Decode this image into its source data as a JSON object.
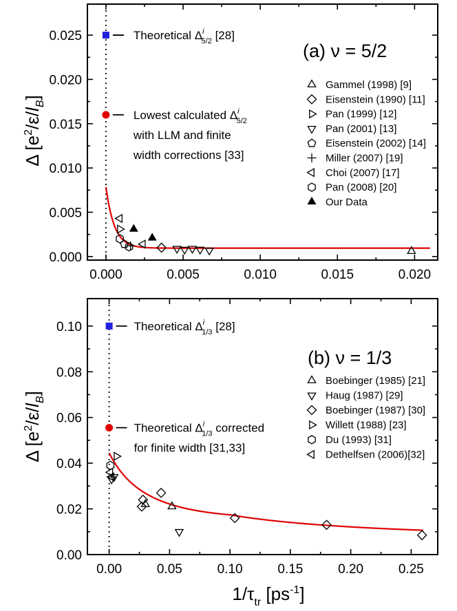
{
  "chart_data": [
    {
      "panel": "a",
      "type": "scatter",
      "title": "(a) ν = 5/2",
      "ylabel": "Δ [e²/ε/l_B]",
      "xlim": [
        -0.0012,
        0.0215
      ],
      "ylim": [
        -0.0004,
        0.0285
      ],
      "xticks": [
        0,
        0.005,
        0.01,
        0.015,
        0.02
      ],
      "xticklabels": [
        "0.000",
        "0.005",
        "0.010",
        "0.015",
        "0.020"
      ],
      "yticks": [
        0,
        0.005,
        0.01,
        0.015,
        0.02,
        0.025
      ],
      "yticklabels": [
        "0.000",
        "0.005",
        "0.010",
        "0.015",
        "0.020",
        "0.025"
      ],
      "series": [
        {
          "name": "Gammel (1998) [9]",
          "marker": "triangle-up",
          "x": [
            0.0198
          ],
          "y": [
            0.0006
          ]
        },
        {
          "name": "Eisenstein (1990) [11]",
          "marker": "diamond",
          "x": [
            0.0036
          ],
          "y": [
            0.001
          ]
        },
        {
          "name": "Pan (1999) [12]",
          "marker": "triangle-right",
          "x": [
            0.0009
          ],
          "y": [
            0.0031
          ]
        },
        {
          "name": "Pan (2001) [13]",
          "marker": "triangle-down",
          "x": [
            0.0046,
            0.0051,
            0.0056,
            0.0061,
            0.0067
          ],
          "y": [
            0.0009,
            0.0008,
            0.0009,
            0.0008,
            0.0007
          ]
        },
        {
          "name": "Eisenstein (2002) [14]",
          "marker": "pentagon",
          "x": [
            0.0012
          ],
          "y": [
            0.0014
          ]
        },
        {
          "name": "Miller (2007) [19]",
          "marker": "plus",
          "x": [
            0.0016
          ],
          "y": [
            0.0012
          ]
        },
        {
          "name": "Choi (2007) [17]",
          "marker": "triangle-left",
          "x": [
            0.0009,
            0.0024
          ],
          "y": [
            0.0043,
            0.0014
          ]
        },
        {
          "name": "Pan (2008) [20]",
          "marker": "hexagon",
          "x": [
            0.0009,
            0.0015
          ],
          "y": [
            0.002,
            0.0011
          ]
        },
        {
          "name": "Our Data",
          "marker": "triangle-up-filled",
          "x": [
            0.0018,
            0.003
          ],
          "y": [
            0.0031,
            0.0021
          ]
        }
      ],
      "theory_points": [
        {
          "label": "Theoretical Δ5/2 [28]",
          "x": 0,
          "y": 0.025,
          "color": "#1f1fe0",
          "marker": "square"
        },
        {
          "label_lines": [
            "Lowest calculated Δ5/2",
            "with LLM and finite",
            "width corrections [33]"
          ],
          "x": 0,
          "y": 0.016,
          "color": "#e00000",
          "marker": "circle"
        }
      ],
      "fit_color": "#e00000"
    },
    {
      "panel": "b",
      "type": "scatter",
      "title": "(b) ν = 1/3",
      "ylabel": "Δ [e²/ε/l_B]",
      "xlabel": "1/τ_tr [ps⁻¹]",
      "xlim": [
        -0.018,
        0.272
      ],
      "ylim": [
        0,
        0.112
      ],
      "xticks": [
        0,
        0.05,
        0.1,
        0.15,
        0.2,
        0.25
      ],
      "xticklabels": [
        "0.00",
        "0.05",
        "0.10",
        "0.15",
        "0.20",
        "0.25"
      ],
      "yticks": [
        0,
        0.02,
        0.04,
        0.06,
        0.08,
        0.1
      ],
      "yticklabels": [
        "0.00",
        "0.02",
        "0.04",
        "0.06",
        "0.08",
        "0.10"
      ],
      "series": [
        {
          "name": "Boebinger (1985) [21]",
          "marker": "triangle-up",
          "x": [
            0.03,
            0.052
          ],
          "y": [
            0.022,
            0.021
          ]
        },
        {
          "name": "Haug (1987) [29]",
          "marker": "triangle-down",
          "x": [
            0.002,
            0.004,
            0.058
          ],
          "y": [
            0.033,
            0.034,
            0.01
          ]
        },
        {
          "name": "Boebinger (1987) [30]",
          "marker": "diamond",
          "x": [
            0.027,
            0.028,
            0.043,
            0.104,
            0.18,
            0.259
          ],
          "y": [
            0.021,
            0.024,
            0.027,
            0.016,
            0.013,
            0.0085
          ]
        },
        {
          "name": "Willett (1988) [23]",
          "marker": "triangle-right",
          "x": [
            0.006
          ],
          "y": [
            0.043
          ]
        },
        {
          "name": "Du (1993) [31]",
          "marker": "hexagon",
          "x": [
            0.001
          ],
          "y": [
            0.039
          ]
        },
        {
          "name": "Dethelfsen (2006)[32]",
          "marker": "triangle-left",
          "x": [
            0.001,
            0.002
          ],
          "y": [
            0.036,
            0.034
          ]
        }
      ],
      "theory_points": [
        {
          "label": "Theoretical Δ1/3 [28]",
          "x": 0,
          "y": 0.1,
          "color": "#1f1fe0",
          "marker": "square"
        },
        {
          "label_lines": [
            "Theoretical Δ1/3 corrected",
            "for finite width [31,33]"
          ],
          "x": 0,
          "y": 0.0555,
          "color": "#e00000",
          "marker": "circle"
        }
      ],
      "fit_color": "#e00000"
    }
  ]
}
